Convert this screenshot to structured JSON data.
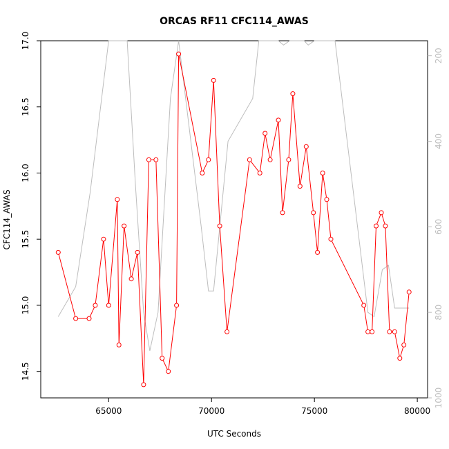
{
  "chart_data": {
    "type": "line",
    "title": "ORCAS RF11 CFC114_AWAS",
    "xlabel": "UTC Seconds",
    "ylabel": "CFC114_AWAS",
    "xlim": [
      61700,
      80500
    ],
    "ylim": [
      14.3,
      17.0
    ],
    "xticks": [
      "65000",
      "70000",
      "75000",
      "80000"
    ],
    "yticks": [
      "14.5",
      "15.0",
      "15.5",
      "16.0",
      "16.5",
      "17.0"
    ],
    "y2lim": [
      1000,
      165
    ],
    "y2ticks": [
      "200",
      "400",
      "600",
      "800",
      "1000"
    ],
    "series": [
      {
        "color": "#ff0000",
        "marker": "open-circle",
        "x": [
          62550,
          63400,
          64050,
          64350,
          64750,
          65000,
          65420,
          65500,
          65750,
          66100,
          66400,
          66700,
          66950,
          67300,
          67600,
          67900,
          68300,
          68400,
          69550,
          69850,
          70100,
          70400,
          70750,
          71850,
          72350,
          72600,
          72850,
          73250,
          73450,
          73750,
          73950,
          74300,
          74600,
          74950,
          75150,
          75400,
          75600,
          75800,
          77400,
          77600,
          77800,
          78000,
          78250,
          78450,
          78650,
          78900,
          79150,
          79350,
          79600
        ],
        "y": [
          15.4,
          14.9,
          14.9,
          15.0,
          15.5,
          15.0,
          15.8,
          14.7,
          15.6,
          15.2,
          15.4,
          14.4,
          16.1,
          16.1,
          14.6,
          14.5,
          15.0,
          16.9,
          16.0,
          16.1,
          16.7,
          15.6,
          14.8,
          16.1,
          16.0,
          16.3,
          16.1,
          16.4,
          15.7,
          16.1,
          16.6,
          15.9,
          16.2,
          15.7,
          15.4,
          16.0,
          15.8,
          15.5,
          15.0,
          14.8,
          14.8,
          15.6,
          15.7,
          15.6,
          14.8,
          14.8,
          14.6,
          14.7,
          15.1
        ]
      },
      {
        "color": "#bdbdbd",
        "axis": "right",
        "x": [
          62550,
          63400,
          64100,
          65000,
          65900,
          66300,
          66700,
          67000,
          67400,
          68000,
          68400,
          69500,
          69850,
          70100,
          70800,
          72000,
          72300,
          72600,
          73250,
          73500,
          73800,
          74500,
          74700,
          75000,
          76000,
          77600,
          77900,
          78300,
          78600,
          78900,
          79600
        ],
        "y": [
          810,
          740,
          520,
          165,
          165,
          500,
          800,
          890,
          800,
          300,
          165,
          600,
          750,
          750,
          400,
          300,
          165,
          165,
          165,
          175,
          165,
          165,
          175,
          165,
          165,
          800,
          810,
          700,
          690,
          790,
          790
        ]
      }
    ]
  }
}
